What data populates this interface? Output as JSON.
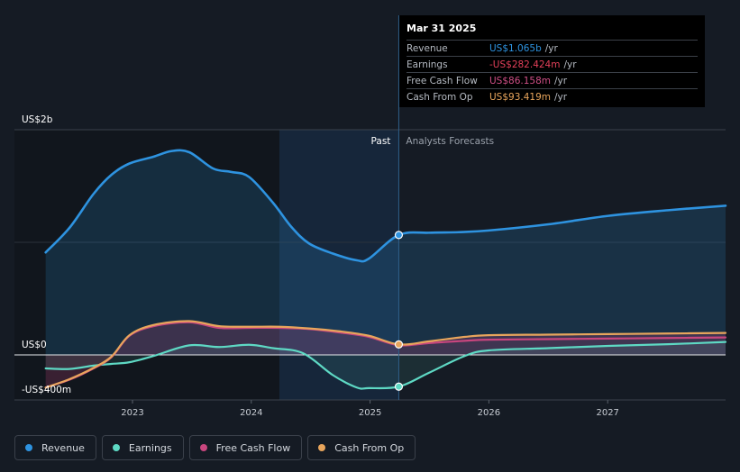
{
  "tooltip": {
    "date": "Mar 31 2025",
    "rows": [
      {
        "label": "Revenue",
        "value": "US$1.065b",
        "unit": "/yr",
        "color": "#2e93e0"
      },
      {
        "label": "Earnings",
        "value": "-US$282.424m",
        "unit": "/yr",
        "color": "#e4405a"
      },
      {
        "label": "Free Cash Flow",
        "value": "US$86.158m",
        "unit": "/yr",
        "color": "#d04f86"
      },
      {
        "label": "Cash From Op",
        "value": "US$93.419m",
        "unit": "/yr",
        "color": "#e8a55c"
      }
    ]
  },
  "legend": [
    {
      "label": "Revenue",
      "color": "#2e93e0"
    },
    {
      "label": "Earnings",
      "color": "#5ed9c4"
    },
    {
      "label": "Free Cash Flow",
      "color": "#c8467e"
    },
    {
      "label": "Cash From Op",
      "color": "#e8a55c"
    }
  ],
  "chart_data": {
    "type": "line",
    "y_tick_labels": [
      "US$2b",
      "US$0",
      "-US$400m"
    ],
    "x_tick_labels": [
      "2023",
      "2024",
      "2025",
      "2026",
      "2027"
    ],
    "past_label": "Past",
    "forecast_label": "Analysts Forecasts",
    "ylim": [
      -400,
      2000
    ],
    "xlim": [
      2022.28,
      2027.98
    ],
    "divider_x": 2025.25,
    "series": [
      {
        "name": "Revenue",
        "color": "#2e93e0",
        "points": [
          [
            2022.3,
            910
          ],
          [
            2022.5,
            1130
          ],
          [
            2022.7,
            1430
          ],
          [
            2022.85,
            1600
          ],
          [
            2023.0,
            1700
          ],
          [
            2023.2,
            1760
          ],
          [
            2023.35,
            1810
          ],
          [
            2023.5,
            1800
          ],
          [
            2023.7,
            1655
          ],
          [
            2023.85,
            1625
          ],
          [
            2024.0,
            1580
          ],
          [
            2024.2,
            1350
          ],
          [
            2024.35,
            1140
          ],
          [
            2024.5,
            990
          ],
          [
            2024.7,
            900
          ],
          [
            2024.9,
            840
          ],
          [
            2025.0,
            855
          ],
          [
            2025.25,
            1065
          ],
          [
            2025.5,
            1085
          ],
          [
            2025.75,
            1090
          ],
          [
            2026.0,
            1105
          ],
          [
            2026.5,
            1160
          ],
          [
            2027.0,
            1235
          ],
          [
            2027.5,
            1285
          ],
          [
            2027.98,
            1325
          ]
        ]
      },
      {
        "name": "Earnings",
        "color": "#5ed9c4",
        "points": [
          [
            2022.3,
            -120
          ],
          [
            2022.5,
            -125
          ],
          [
            2022.7,
            -95
          ],
          [
            2022.85,
            -80
          ],
          [
            2023.0,
            -65
          ],
          [
            2023.2,
            -10
          ],
          [
            2023.5,
            85
          ],
          [
            2023.75,
            70
          ],
          [
            2024.0,
            90
          ],
          [
            2024.2,
            60
          ],
          [
            2024.45,
            15
          ],
          [
            2024.7,
            -180
          ],
          [
            2024.9,
            -290
          ],
          [
            2025.0,
            -295
          ],
          [
            2025.25,
            -282
          ],
          [
            2025.5,
            -160
          ],
          [
            2025.8,
            -10
          ],
          [
            2026.0,
            40
          ],
          [
            2026.5,
            60
          ],
          [
            2027.0,
            80
          ],
          [
            2027.5,
            95
          ],
          [
            2027.98,
            115
          ]
        ]
      },
      {
        "name": "Free Cash Flow",
        "color": "#c8467e",
        "points": [
          [
            2022.3,
            -290
          ],
          [
            2022.5,
            -220
          ],
          [
            2022.7,
            -120
          ],
          [
            2022.85,
            -20
          ],
          [
            2023.0,
            170
          ],
          [
            2023.2,
            255
          ],
          [
            2023.5,
            290
          ],
          [
            2023.75,
            240
          ],
          [
            2024.0,
            240
          ],
          [
            2024.25,
            240
          ],
          [
            2024.5,
            230
          ],
          [
            2024.75,
            200
          ],
          [
            2025.0,
            160
          ],
          [
            2025.25,
            86
          ],
          [
            2025.5,
            105
          ],
          [
            2025.8,
            125
          ],
          [
            2026.0,
            135
          ],
          [
            2026.5,
            140
          ],
          [
            2027.0,
            145
          ],
          [
            2027.5,
            150
          ],
          [
            2027.98,
            155
          ]
        ]
      },
      {
        "name": "Cash From Op",
        "color": "#e8a55c",
        "points": [
          [
            2022.3,
            -290
          ],
          [
            2022.5,
            -215
          ],
          [
            2022.7,
            -115
          ],
          [
            2022.85,
            -15
          ],
          [
            2023.0,
            175
          ],
          [
            2023.2,
            265
          ],
          [
            2023.5,
            300
          ],
          [
            2023.75,
            255
          ],
          [
            2024.0,
            250
          ],
          [
            2024.25,
            250
          ],
          [
            2024.5,
            235
          ],
          [
            2024.75,
            210
          ],
          [
            2025.0,
            170
          ],
          [
            2025.25,
            93
          ],
          [
            2025.5,
            120
          ],
          [
            2025.8,
            160
          ],
          [
            2026.0,
            175
          ],
          [
            2026.5,
            180
          ],
          [
            2027.0,
            185
          ],
          [
            2027.5,
            190
          ],
          [
            2027.98,
            195
          ]
        ]
      }
    ]
  }
}
